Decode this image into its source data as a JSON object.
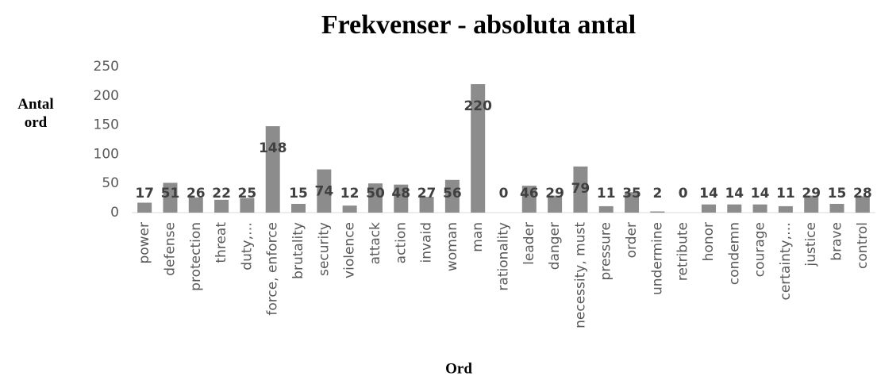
{
  "chart_data": {
    "type": "bar",
    "title": "Frekvenser - absoluta antal",
    "y_label": "Antal ord",
    "x_label": "Ord",
    "categories": [
      "power",
      "defense",
      "protection",
      "threat",
      "duty,…",
      "force, enforce",
      "brutality",
      "security",
      "violence",
      "attack",
      "action",
      "invaid",
      "woman",
      "man",
      "rationality",
      "leader",
      "danger",
      "necessity, must",
      "pressure",
      "order",
      "undermine",
      "retribute",
      "honor",
      "condemn",
      "courage",
      "certainty,…",
      "justice",
      "brave",
      "control"
    ],
    "values": [
      17,
      51,
      26,
      22,
      25,
      148,
      15,
      74,
      12,
      50,
      48,
      27,
      56,
      220,
      0,
      46,
      29,
      79,
      11,
      35,
      2,
      0,
      14,
      14,
      14,
      11,
      29,
      15,
      28
    ],
    "color": "#8c8c8c",
    "ylim": [
      0,
      250
    ],
    "yticks": [
      0,
      50,
      100,
      150,
      200,
      250
    ],
    "grid": false
  }
}
